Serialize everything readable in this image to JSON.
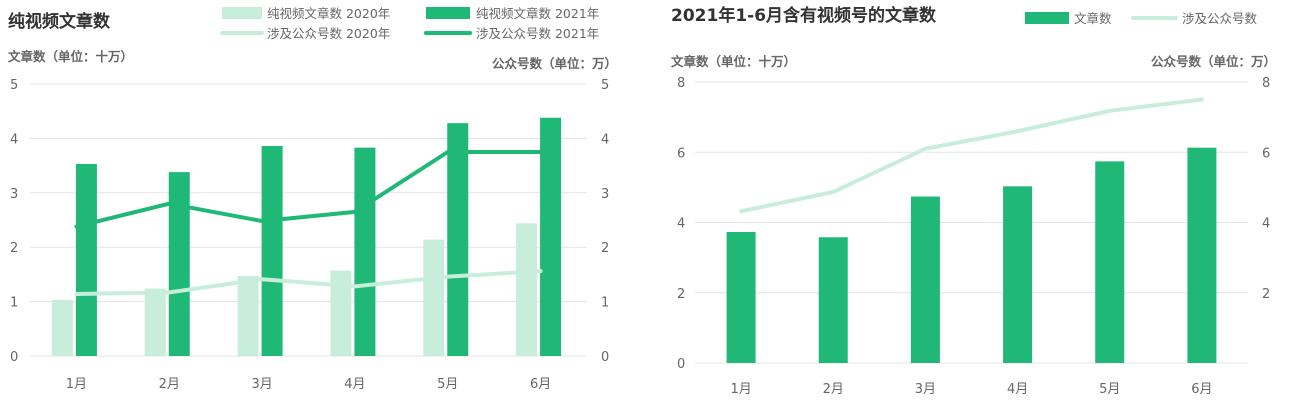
{
  "colors": {
    "dark_green": "#1fb876",
    "light_green": "#c8eedb",
    "grid": "#e3e3e3",
    "text": "#666666",
    "title": "#333333"
  },
  "chart_data": [
    {
      "type": "bar",
      "title": "纯视频文章数",
      "categories": [
        "1月",
        "2月",
        "3月",
        "4月",
        "5月",
        "6月"
      ],
      "y_label_left": "文章数（单位：十万）",
      "y_label_right": "公众号数（单位：万）",
      "ylim_left": [
        0,
        5
      ],
      "ylim_right": [
        0,
        5
      ],
      "ticks_left": [
        "0",
        "1",
        "2",
        "3",
        "4",
        "5"
      ],
      "ticks_right": [
        "0",
        "1",
        "2",
        "3",
        "4",
        "5"
      ],
      "grid": true,
      "legend_position": "top",
      "series": [
        {
          "name": "纯视频文章数 2020年",
          "kind": "bar",
          "axis": "left",
          "color": "#c8eedb",
          "values": [
            1.03,
            1.24,
            1.47,
            1.57,
            2.14,
            2.44
          ]
        },
        {
          "name": "纯视频文章数 2021年",
          "kind": "bar",
          "axis": "left",
          "color": "#1fb876",
          "values": [
            3.53,
            3.38,
            3.86,
            3.83,
            4.28,
            4.38
          ]
        },
        {
          "name": "涉及公众号数 2020年",
          "kind": "line",
          "axis": "right",
          "color": "#c8eedb",
          "values": [
            1.14,
            1.17,
            1.41,
            1.28,
            1.46,
            1.56
          ]
        },
        {
          "name": "涉及公众号数 2021年",
          "kind": "line",
          "axis": "right",
          "color": "#1fb876",
          "values": [
            2.38,
            2.8,
            2.48,
            2.65,
            3.75,
            3.75
          ]
        }
      ]
    },
    {
      "type": "bar",
      "title": "2021年1-6月含有视频号的文章数",
      "categories": [
        "1月",
        "2月",
        "3月",
        "4月",
        "5月",
        "6月"
      ],
      "y_label_left": "文章数（单位：十万）",
      "y_label_right": "公众号数（单位：万）",
      "ylim_left": [
        0,
        8
      ],
      "ylim_right": [
        0,
        8
      ],
      "ticks_left": [
        "0",
        "2",
        "4",
        "6",
        "8"
      ],
      "ticks_right": [
        "",
        "2",
        "4",
        "6",
        "8"
      ],
      "grid": true,
      "legend_position": "top-right",
      "series": [
        {
          "name": "文章数",
          "kind": "bar",
          "axis": "left",
          "color": "#1fb876",
          "values": [
            3.73,
            3.58,
            4.74,
            5.03,
            5.74,
            6.13
          ]
        },
        {
          "name": "涉及公众号数",
          "kind": "line",
          "axis": "right",
          "color": "#c8eedb",
          "values": [
            4.32,
            4.87,
            6.1,
            6.6,
            7.18,
            7.5
          ]
        }
      ]
    }
  ]
}
